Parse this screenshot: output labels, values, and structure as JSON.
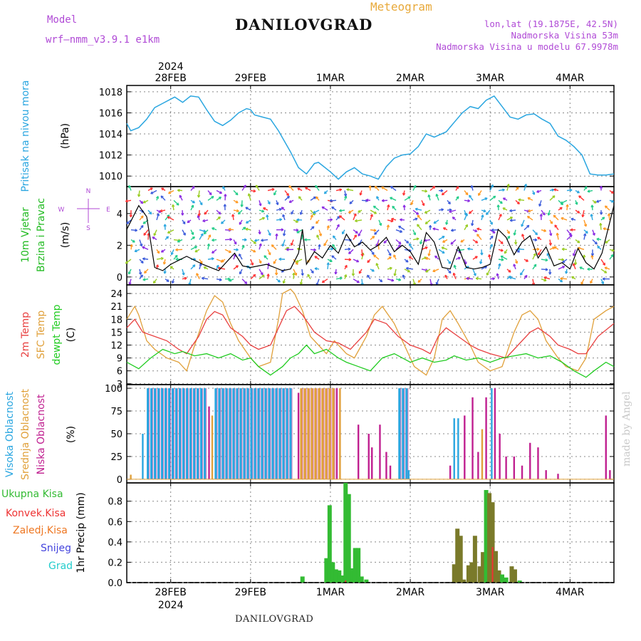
{
  "header": {
    "model_label": "Model",
    "model_name": "wrf—nmm_v3.9.1  e1km",
    "station": "DANILOVGRAD",
    "meteogram_label": "Meteogram",
    "lonlat": "lon,lat (19.1875E, 42.5N)",
    "elevation": "Nadmorska Visina 53m",
    "model_elevation": "Nadmorska Visina u modelu 67.9978m",
    "year_top": "2024",
    "year_bottom": "2024",
    "footer_station": "DANILOVGRAD",
    "watermark": "made by Angel"
  },
  "colors": {
    "pressure": "#2aa6e0",
    "t2m": "#e84040",
    "sfc": "#e0a03a",
    "dewpt": "#22cc22",
    "high_cloud": "#2aa6e0",
    "mid_cloud": "#e0a03a",
    "low_cloud": "#c02090",
    "total_precip": "#33bb33",
    "conv_precip": "#ee3333",
    "frozen_precip": "#ee7722",
    "snow": "#4444dd",
    "graupel": "#22cccc",
    "wind_speed": "#000000",
    "gust": "#ff3333"
  },
  "chart_data": [
    {
      "type": "line",
      "panel": "pressure",
      "ylabel_parts": [
        "Pritisak na nivou mora",
        "(hPa)"
      ],
      "x_unit": "days from 28FEB 00UTC",
      "xlim": [
        -0.55,
        5.55
      ],
      "ylim": [
        1009,
        1018.6
      ],
      "yticks": [
        1010,
        1012,
        1014,
        1016,
        1018
      ],
      "grid": true,
      "series": [
        {
          "x": [
            -0.55,
            -0.5,
            -0.4,
            -0.3,
            -0.2,
            -0.1,
            0.0,
            0.05,
            0.15,
            0.25,
            0.35,
            0.45,
            0.55,
            0.65,
            0.75,
            0.85,
            0.95,
            1.0,
            1.05,
            1.15,
            1.25,
            1.35,
            1.5,
            1.6,
            1.7,
            1.8,
            1.85,
            1.9,
            2.0,
            2.1,
            2.2,
            2.3,
            2.4,
            2.5,
            2.6,
            2.7,
            2.8,
            2.9,
            3.0,
            3.1,
            3.2,
            3.3,
            3.45,
            3.55,
            3.65,
            3.75,
            3.85,
            3.95,
            4.05,
            4.15,
            4.25,
            4.35,
            4.45,
            4.55,
            4.65,
            4.75,
            4.85,
            4.95,
            5.05,
            5.15,
            5.25,
            5.35,
            5.45,
            5.55
          ],
          "y": [
            1015.0,
            1014.3,
            1014.6,
            1015.4,
            1016.5,
            1016.9,
            1017.3,
            1017.5,
            1017.0,
            1017.6,
            1017.5,
            1016.3,
            1015.2,
            1014.8,
            1015.3,
            1016.0,
            1016.4,
            1016.3,
            1015.8,
            1015.6,
            1015.4,
            1014.3,
            1012.3,
            1010.8,
            1010.2,
            1011.2,
            1011.3,
            1011.0,
            1010.4,
            1009.7,
            1010.4,
            1010.8,
            1010.2,
            1010.0,
            1009.7,
            1010.9,
            1011.7,
            1012.0,
            1012.1,
            1012.8,
            1014.0,
            1013.7,
            1014.2,
            1015.1,
            1016.0,
            1016.6,
            1016.4,
            1017.2,
            1017.6,
            1016.6,
            1015.6,
            1015.4,
            1015.8,
            1015.9,
            1015.4,
            1015.0,
            1013.8,
            1013.4,
            1012.8,
            1012.0,
            1010.2,
            1010.1,
            1010.1,
            1010.2
          ]
        }
      ]
    },
    {
      "type": "line",
      "panel": "wind",
      "ylabel_parts": [
        "10m Vjetar",
        "Brzina i Pravac",
        "(m/s)"
      ],
      "compass": {
        "n": "N",
        "s": "S",
        "e": "E",
        "w": "W",
        "arrow_up": "^",
        "arrow_down": "v"
      },
      "xlim": [
        -0.55,
        5.55
      ],
      "ylim": [
        -0.5,
        5.7
      ],
      "yticks": [
        0,
        2,
        4
      ],
      "grid": true,
      "series": [
        {
          "name": "speed",
          "x": [
            -0.55,
            -0.4,
            -0.3,
            -0.2,
            -0.1,
            0.0,
            0.2,
            0.4,
            0.6,
            0.8,
            0.9,
            1.0,
            1.2,
            1.4,
            1.5,
            1.6,
            1.65,
            1.7,
            1.8,
            1.9,
            2.0,
            2.1,
            2.2,
            2.3,
            2.4,
            2.5,
            2.6,
            2.7,
            2.8,
            2.9,
            3.0,
            3.1,
            3.2,
            3.3,
            3.4,
            3.5,
            3.6,
            3.7,
            3.8,
            3.9,
            4.0,
            4.1,
            4.2,
            4.3,
            4.4,
            4.5,
            4.6,
            4.7,
            4.8,
            4.9,
            5.0,
            5.1,
            5.2,
            5.3,
            5.4,
            5.55
          ],
          "y": [
            3.0,
            4.5,
            3.8,
            0.6,
            0.4,
            0.8,
            1.3,
            0.8,
            0.4,
            1.5,
            0.7,
            0.6,
            0.8,
            0.4,
            0.5,
            1.5,
            3.0,
            0.8,
            1.6,
            1.2,
            2.0,
            1.5,
            2.7,
            1.9,
            2.2,
            1.7,
            2.0,
            2.5,
            1.6,
            2.0,
            1.6,
            0.8,
            2.8,
            2.2,
            0.6,
            0.5,
            1.9,
            0.6,
            0.5,
            0.6,
            0.8,
            3.0,
            2.5,
            1.4,
            2.2,
            2.6,
            1.2,
            1.9,
            0.7,
            0.9,
            0.5,
            1.8,
            0.9,
            0.5,
            1.5,
            4.5
          ]
        }
      ]
    },
    {
      "type": "line",
      "panel": "temperature",
      "ylabel_parts": [
        "2m Temp",
        "SFC Temp",
        "dewpt Temp",
        "(C)"
      ],
      "xlim": [
        -0.55,
        5.55
      ],
      "ylim": [
        2.8,
        26
      ],
      "yticks": [
        3,
        6,
        9,
        12,
        15,
        18,
        21,
        24
      ],
      "grid": true,
      "series": [
        {
          "name": "2m Temp",
          "x": [
            -0.55,
            -0.45,
            -0.35,
            -0.2,
            -0.05,
            0.1,
            0.2,
            0.35,
            0.45,
            0.55,
            0.65,
            0.75,
            0.9,
            1.0,
            1.1,
            1.25,
            1.35,
            1.45,
            1.55,
            1.65,
            1.8,
            1.95,
            2.1,
            2.25,
            2.35,
            2.45,
            2.55,
            2.7,
            2.85,
            3.0,
            3.15,
            3.25,
            3.35,
            3.45,
            3.6,
            3.75,
            3.85,
            4.0,
            4.2,
            4.35,
            4.5,
            4.6,
            4.75,
            4.85,
            5.0,
            5.1,
            5.2,
            5.35,
            5.55
          ],
          "y": [
            16,
            18,
            15,
            14,
            13,
            11,
            10,
            14,
            18,
            19.8,
            19,
            16,
            14,
            12,
            11,
            12,
            16,
            20,
            21,
            19,
            15,
            13,
            12.5,
            11,
            13,
            15,
            18,
            17,
            14,
            12,
            11,
            10,
            14,
            16,
            14,
            12,
            11,
            10,
            9,
            12,
            15,
            16,
            14,
            12,
            11,
            10,
            10,
            14,
            17
          ]
        },
        {
          "name": "SFC Temp",
          "x": [
            -0.55,
            -0.45,
            -0.4,
            -0.3,
            -0.2,
            -0.05,
            0.1,
            0.2,
            0.3,
            0.45,
            0.55,
            0.65,
            0.75,
            0.85,
            1.0,
            1.1,
            1.25,
            1.35,
            1.4,
            1.5,
            1.55,
            1.65,
            1.75,
            1.85,
            1.95,
            2.05,
            2.2,
            2.3,
            2.45,
            2.55,
            2.65,
            2.8,
            2.95,
            3.05,
            3.2,
            3.3,
            3.4,
            3.5,
            3.6,
            3.75,
            3.85,
            4.0,
            4.15,
            4.3,
            4.4,
            4.5,
            4.6,
            4.7,
            4.85,
            4.95,
            5.1,
            5.2,
            5.3,
            5.45,
            5.55
          ],
          "y": [
            18,
            21,
            19,
            13,
            11,
            9,
            8,
            6,
            12,
            20,
            23.5,
            22,
            17,
            13,
            9,
            7,
            8,
            18,
            24,
            25,
            24,
            20,
            14,
            12,
            10,
            13,
            10,
            9,
            14,
            19,
            21,
            17,
            11,
            7,
            5,
            9,
            18,
            20,
            17,
            12,
            8,
            6,
            7,
            15,
            19,
            20,
            18,
            13,
            9,
            7,
            6,
            9,
            18,
            20,
            21
          ]
        },
        {
          "name": "dewpt Temp",
          "x": [
            -0.55,
            -0.4,
            -0.25,
            -0.1,
            0.05,
            0.15,
            0.3,
            0.45,
            0.6,
            0.75,
            0.9,
            1.0,
            1.1,
            1.25,
            1.4,
            1.5,
            1.6,
            1.7,
            1.8,
            1.95,
            2.1,
            2.2,
            2.35,
            2.5,
            2.65,
            2.8,
            2.9,
            3.0,
            3.15,
            3.3,
            3.45,
            3.55,
            3.7,
            3.85,
            4.0,
            4.15,
            4.3,
            4.45,
            4.6,
            4.75,
            4.9,
            5.05,
            5.2,
            5.3,
            5.45,
            5.55
          ],
          "y": [
            8,
            6.5,
            9,
            11,
            10,
            10.5,
            9.5,
            10,
            9,
            10,
            8.5,
            9,
            7,
            5,
            7,
            9,
            10,
            12,
            10,
            11,
            9,
            8,
            7,
            6,
            9,
            10,
            9,
            8,
            9,
            8,
            8.5,
            9.5,
            8.5,
            9,
            8,
            9,
            9.5,
            10,
            9,
            9.5,
            8,
            6,
            4.5,
            6,
            8,
            7
          ]
        }
      ]
    },
    {
      "type": "bar",
      "panel": "cloud",
      "ylabel_parts": [
        "Visoka Oblacnost",
        "Srednja Oblacnost",
        "Niska Oblacnost",
        "(%)"
      ],
      "xlim": [
        -0.55,
        5.55
      ],
      "ylim": [
        -4,
        104
      ],
      "yticks": [
        0,
        25,
        50,
        75,
        100
      ],
      "grid": true,
      "blocks": [
        {
          "name": "Visoka Oblacnost",
          "type": "high",
          "from": -0.3,
          "to": 0.45,
          "value": 100
        },
        {
          "name": "Visoka Oblacnost",
          "type": "high",
          "from": 0.55,
          "to": 1.5,
          "value": 100
        },
        {
          "name": "Srednja Oblacnost",
          "type": "mid",
          "from": 1.62,
          "to": 2.05,
          "value": 100
        },
        {
          "name": "Visoka Oblacnost",
          "type": "high",
          "from": 2.85,
          "to": 2.98,
          "value": 100
        }
      ],
      "bars": [
        {
          "x": -0.35,
          "type": "high",
          "value": 50
        },
        {
          "x": -0.5,
          "type": "mid",
          "value": 5
        },
        {
          "x": 0.48,
          "type": "low",
          "value": 80
        },
        {
          "x": 0.52,
          "type": "mid",
          "value": 70
        },
        {
          "x": 1.6,
          "type": "low",
          "value": 95
        },
        {
          "x": 2.08,
          "type": "low",
          "value": 100
        },
        {
          "x": 2.12,
          "type": "mid",
          "value": 100
        },
        {
          "x": 2.35,
          "type": "low",
          "value": 60
        },
        {
          "x": 2.48,
          "type": "low",
          "value": 50
        },
        {
          "x": 2.52,
          "type": "low",
          "value": 35
        },
        {
          "x": 2.62,
          "type": "low",
          "value": 60
        },
        {
          "x": 2.7,
          "type": "low",
          "value": 30
        },
        {
          "x": 2.75,
          "type": "low",
          "value": 15
        },
        {
          "x": 2.98,
          "type": "high",
          "value": 10
        },
        {
          "x": 3.5,
          "type": "low",
          "value": 15
        },
        {
          "x": 3.55,
          "type": "high",
          "value": 67
        },
        {
          "x": 3.6,
          "type": "high",
          "value": 67
        },
        {
          "x": 3.68,
          "type": "low",
          "value": 70
        },
        {
          "x": 3.78,
          "type": "low",
          "value": 90
        },
        {
          "x": 3.85,
          "type": "low",
          "value": 30
        },
        {
          "x": 3.9,
          "type": "mid",
          "value": 55
        },
        {
          "x": 3.95,
          "type": "low",
          "value": 90
        },
        {
          "x": 4.02,
          "type": "high",
          "value": 100
        },
        {
          "x": 4.06,
          "type": "low",
          "value": 100
        },
        {
          "x": 4.12,
          "type": "low",
          "value": 50
        },
        {
          "x": 4.2,
          "type": "low",
          "value": 25
        },
        {
          "x": 4.3,
          "type": "low",
          "value": 25
        },
        {
          "x": 4.4,
          "type": "low",
          "value": 15
        },
        {
          "x": 4.5,
          "type": "low",
          "value": 40
        },
        {
          "x": 4.6,
          "type": "low",
          "value": 35
        },
        {
          "x": 4.7,
          "type": "low",
          "value": 10
        },
        {
          "x": 4.85,
          "type": "low",
          "value": 6
        },
        {
          "x": 5.45,
          "type": "low",
          "value": 70
        },
        {
          "x": 5.5,
          "type": "low",
          "value": 10
        }
      ]
    },
    {
      "type": "bar",
      "panel": "precip",
      "ylabel_parts": [
        "1hr Precip (mm)"
      ],
      "legend": [
        "Ukupna Kisa",
        "Konvek.Kisa",
        "Zaledj.Kisa",
        "Snijeg",
        "Grad"
      ],
      "xlim": [
        -0.55,
        5.55
      ],
      "ylim": [
        0,
        0.98
      ],
      "yticks": [
        0,
        0.2,
        0.4,
        0.6,
        0.8
      ],
      "grid": true,
      "bars": [
        {
          "x": 1.65,
          "total": 0.06,
          "conv": 0.0
        },
        {
          "x": 1.95,
          "total": 0.24,
          "conv": 0.0
        },
        {
          "x": 1.99,
          "total": 0.76,
          "conv": 0.0
        },
        {
          "x": 2.03,
          "total": 0.2,
          "conv": 0.0
        },
        {
          "x": 2.07,
          "total": 0.13,
          "conv": 0.0
        },
        {
          "x": 2.11,
          "total": 0.12,
          "conv": 0.0
        },
        {
          "x": 2.15,
          "total": 0.07,
          "conv": 0.0
        },
        {
          "x": 2.19,
          "total": 0.98,
          "conv": 0.02
        },
        {
          "x": 2.23,
          "total": 0.87,
          "conv": 0.0
        },
        {
          "x": 2.27,
          "total": 0.14,
          "conv": 0.0
        },
        {
          "x": 2.31,
          "total": 0.34,
          "conv": 0.0
        },
        {
          "x": 2.35,
          "total": 0.34,
          "conv": 0.0
        },
        {
          "x": 2.39,
          "total": 0.06,
          "conv": 0.0
        },
        {
          "x": 2.45,
          "total": 0.03,
          "conv": 0.0
        },
        {
          "x": 3.55,
          "total": 0.18,
          "conv": 0.0
        },
        {
          "x": 3.59,
          "total": 0.53,
          "conv": 0.0
        },
        {
          "x": 3.63,
          "total": 0.46,
          "conv": 0.0
        },
        {
          "x": 3.67,
          "total": 0.03,
          "conv": 0.0
        },
        {
          "x": 3.73,
          "total": 0.17,
          "conv": 0.0
        },
        {
          "x": 3.77,
          "total": 0.2,
          "conv": 0.0
        },
        {
          "x": 3.81,
          "total": 0.46,
          "conv": 0.0
        },
        {
          "x": 3.87,
          "total": 0.16,
          "conv": 0.0
        },
        {
          "x": 3.91,
          "total": 0.3,
          "conv": 0.0
        },
        {
          "x": 3.95,
          "total": 0.91,
          "conv": 0.0
        },
        {
          "x": 3.99,
          "total": 0.88,
          "conv": 0.0
        },
        {
          "x": 4.03,
          "total": 0.79,
          "conv": 0.35
        },
        {
          "x": 4.07,
          "total": 0.31,
          "conv": 0.0
        },
        {
          "x": 4.11,
          "total": 0.12,
          "conv": 0.0
        },
        {
          "x": 4.15,
          "total": 0.08,
          "conv": 0.0
        },
        {
          "x": 4.2,
          "total": 0.05,
          "conv": 0.0
        },
        {
          "x": 4.27,
          "total": 0.16,
          "conv": 0.0
        },
        {
          "x": 4.31,
          "total": 0.13,
          "conv": 0.0
        },
        {
          "x": 4.37,
          "total": 0.02,
          "conv": 0.0
        }
      ]
    }
  ],
  "xaxis": {
    "ticks": [
      {
        "x": 0,
        "label": "28FEB"
      },
      {
        "x": 1,
        "label": "29FEB"
      },
      {
        "x": 2,
        "label": "1MAR"
      },
      {
        "x": 3,
        "label": "2MAR"
      },
      {
        "x": 4,
        "label": "3MAR"
      },
      {
        "x": 5,
        "label": "4MAR"
      }
    ]
  }
}
